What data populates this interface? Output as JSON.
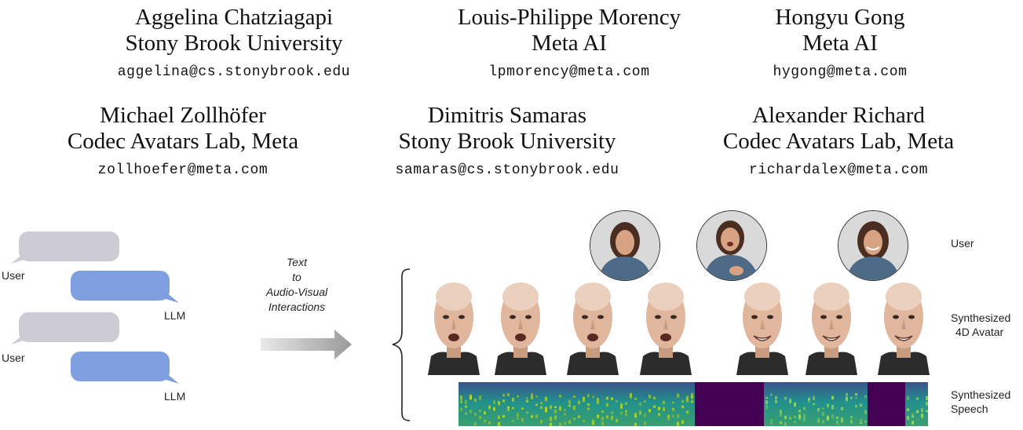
{
  "authors": [
    {
      "name": "Aggelina Chatziagapi",
      "affiliation": "Stony Brook University",
      "email": "aggelina@cs.stonybrook.edu"
    },
    {
      "name": "Louis-Philippe Morency",
      "affiliation": "Meta AI",
      "email": "lpmorency@meta.com"
    },
    {
      "name": "Hongyu Gong",
      "affiliation": "Meta AI",
      "email": "hygong@meta.com"
    },
    {
      "name": "Michael Zollhöfer",
      "affiliation": "Codec Avatars Lab, Meta",
      "email": "zollhoefer@meta.com"
    },
    {
      "name": "Dimitris Samaras",
      "affiliation": "Stony Brook University",
      "email": "samaras@cs.stonybrook.edu"
    },
    {
      "name": "Alexander Richard",
      "affiliation": "Codec Avatars Lab, Meta",
      "email": "richardalex@meta.com"
    }
  ],
  "figure": {
    "chat": {
      "user_label": "User",
      "llm_label": "LLM",
      "user_color": "#cdccd4",
      "llm_color": "#7f9fe0"
    },
    "arrow_label_lines": [
      "Text",
      "to",
      "Audio-Visual",
      "Interactions"
    ],
    "row_labels": {
      "user": "User",
      "avatar_line1": "Synthesized",
      "avatar_line2": "4D Avatar",
      "speech_line1": "Synthesized",
      "speech_line2": "Speech"
    },
    "spectrogram_colors": {
      "speech": "#2c8a8c",
      "silence": "#440154",
      "energy": "#b8de29"
    }
  }
}
